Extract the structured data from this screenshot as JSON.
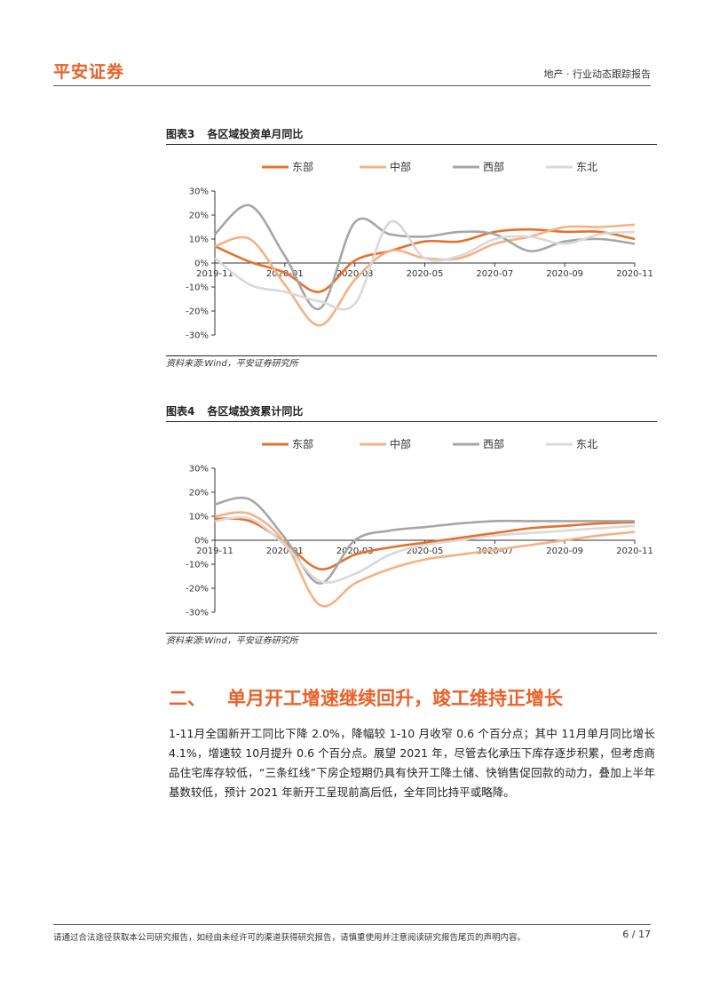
{
  "header": {
    "logo": "平安证券",
    "report_type": "地产 · 行业动态跟踪报告"
  },
  "figures": [
    {
      "number": "图表3",
      "title": "各区域投资单月同比",
      "source": "资料来源:Wind，平安证券研究所"
    },
    {
      "number": "图表4",
      "title": "各区域投资累计同比",
      "source": "资料来源:Wind，平安证券研究所"
    }
  ],
  "section": {
    "number": "二、",
    "title": "单月开工增速继续回升，竣工维持正增长",
    "body": "1-11月全国新开工同比下降 2.0%，降幅较 1-10 月收窄 0.6 个百分点；其中 11月单月同比增长 4.1%，增速较 10月提升 0.6 个百分点。展望 2021 年，尽管去化承压下库存逐步积累，但考虑商品住宅库存较低，“三条红线”下房企短期仍具有快开工降土储、快销售促回款的动力，叠加上半年基数较低，预计 2021 年新开工呈现前高后低，全年同比持平或略降。"
  },
  "footer": {
    "disclaimer": "请通过合法途径获取本公司研究报告，如经由未经许可的渠道获得研究报告，请慎重使用并注意阅读研究报告尾页的声明内容。",
    "page": "6 / 17"
  },
  "chart_data": [
    {
      "type": "line",
      "title": "各区域投资单月同比",
      "x": [
        "2019-11",
        "2019-12",
        "2020-01",
        "2020-02",
        "2020-03",
        "2020-04",
        "2020-05",
        "2020-06",
        "2020-07",
        "2020-08",
        "2020-09",
        "2020-10",
        "2020-11"
      ],
      "x_tick_labels": [
        "2019-11",
        "2020-01",
        "2020-03",
        "2020-05",
        "2020-07",
        "2020-09",
        "2020-11"
      ],
      "y_tick_labels": [
        "30%",
        "20%",
        "10%",
        "0%",
        "-10%",
        "-20%",
        "-30%"
      ],
      "ylim": [
        -30,
        30
      ],
      "legend": "top",
      "series": [
        {
          "name": "东部",
          "color": "#e8702a",
          "values": [
            7,
            0.5,
            -4,
            -12,
            1,
            5,
            9,
            9,
            13,
            14,
            13,
            13,
            10
          ]
        },
        {
          "name": "中部",
          "color": "#f5b183",
          "values": [
            7,
            10,
            -9,
            -26,
            -7,
            5,
            2,
            2,
            8,
            11,
            15,
            15,
            16
          ]
        },
        {
          "name": "西部",
          "color": "#a6a6a6",
          "values": [
            12,
            24,
            3,
            -19,
            17,
            12,
            11,
            13,
            12,
            5,
            9,
            10,
            8
          ]
        },
        {
          "name": "东北",
          "color": "#d9d9d9",
          "values": [
            2,
            -9,
            -12,
            -16,
            -17,
            17,
            2,
            3,
            10,
            11,
            8,
            12,
            13
          ]
        }
      ]
    },
    {
      "type": "line",
      "title": "各区域投资累计同比",
      "x": [
        "2019-11",
        "2019-12",
        "2020-01",
        "2020-02",
        "2020-03",
        "2020-04",
        "2020-05",
        "2020-06",
        "2020-07",
        "2020-08",
        "2020-09",
        "2020-10",
        "2020-11"
      ],
      "x_tick_labels": [
        "2019-11",
        "2020-01",
        "2020-03",
        "2020-05",
        "2020-07",
        "2020-09",
        "2020-11"
      ],
      "y_tick_labels": [
        "30%",
        "20%",
        "10%",
        "0%",
        "-10%",
        "-20%",
        "-30%"
      ],
      "ylim": [
        -30,
        30
      ],
      "legend": "top",
      "series": [
        {
          "name": "东部",
          "color": "#e8702a",
          "values": [
            9,
            8,
            -1,
            -12,
            -6,
            -3,
            -1,
            1,
            3,
            5,
            6,
            7,
            7.5
          ]
        },
        {
          "name": "中部",
          "color": "#f5b183",
          "values": [
            10,
            11,
            -1,
            -27,
            -18,
            -12,
            -8,
            -6,
            -4,
            -2,
            0,
            2,
            3.5
          ]
        },
        {
          "name": "西部",
          "color": "#a6a6a6",
          "values": [
            15,
            17,
            1,
            -18,
            0,
            4,
            5.5,
            7,
            8,
            8,
            8,
            8,
            8
          ]
        },
        {
          "name": "东北",
          "color": "#d9d9d9",
          "values": [
            8,
            9,
            -2,
            -17,
            -14,
            -6,
            -2,
            0,
            2,
            3,
            4,
            5,
            6
          ]
        }
      ]
    }
  ]
}
